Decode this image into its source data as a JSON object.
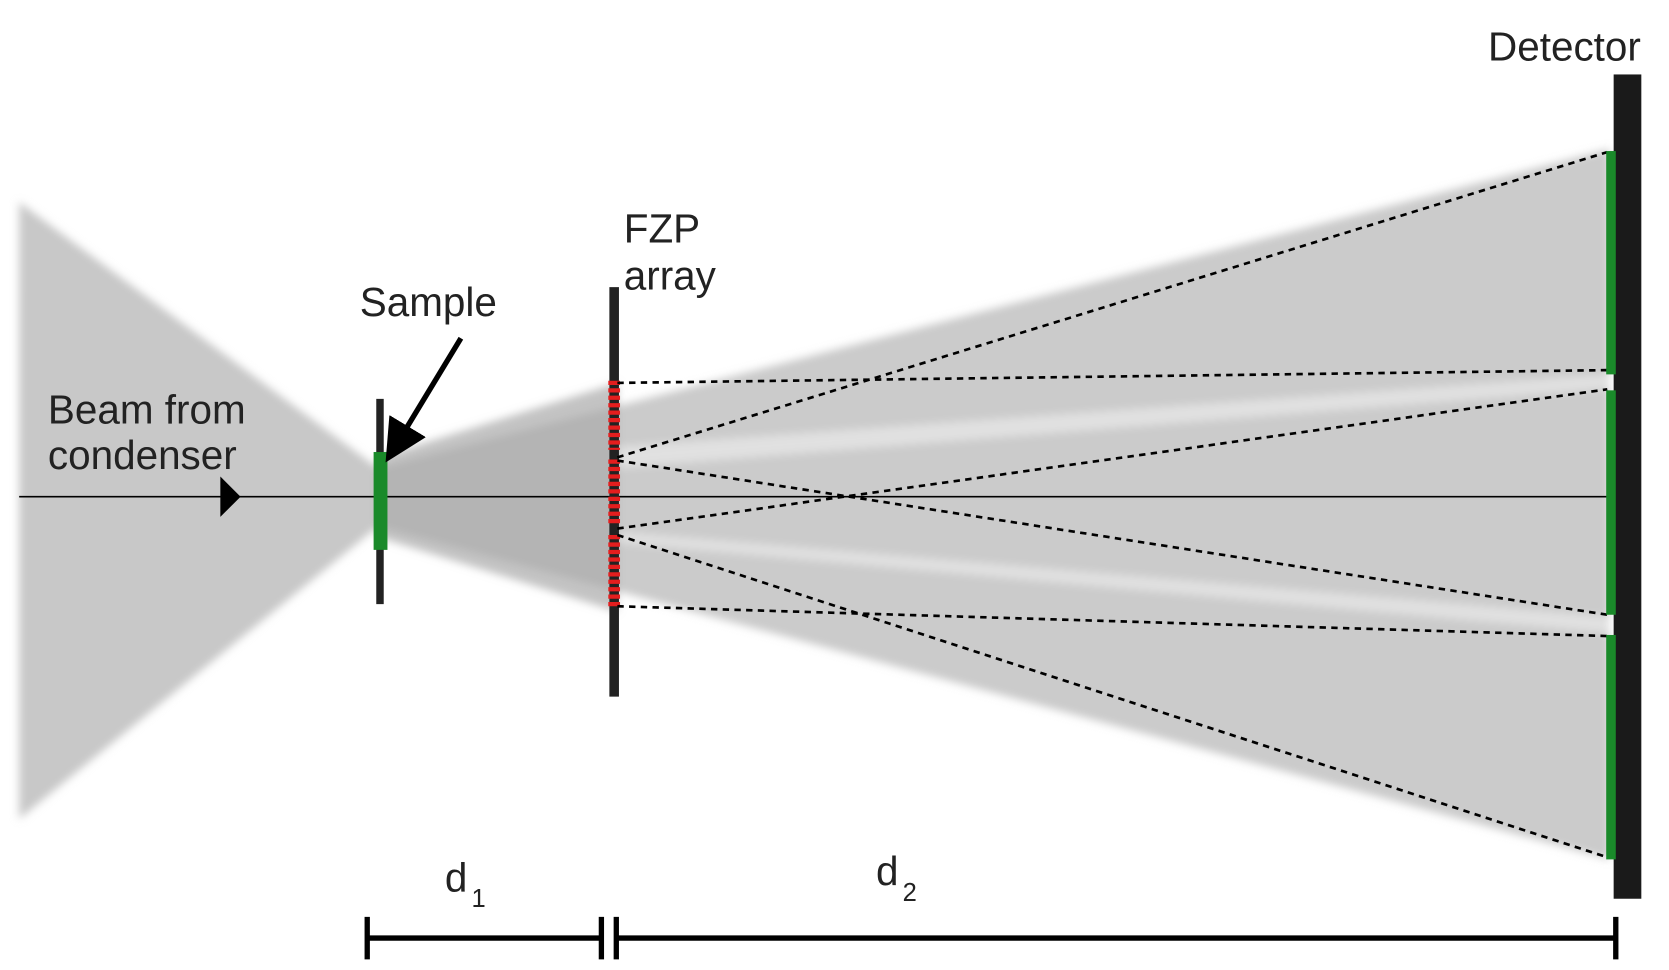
{
  "labels": {
    "detector": "Detector",
    "fzp": [
      "FZP",
      "array"
    ],
    "sample": "Sample",
    "beam": [
      "Beam from",
      "condenser"
    ],
    "d1": {
      "main": "d",
      "sub": "1"
    },
    "d2": {
      "main": "d",
      "sub": "2"
    }
  }
}
